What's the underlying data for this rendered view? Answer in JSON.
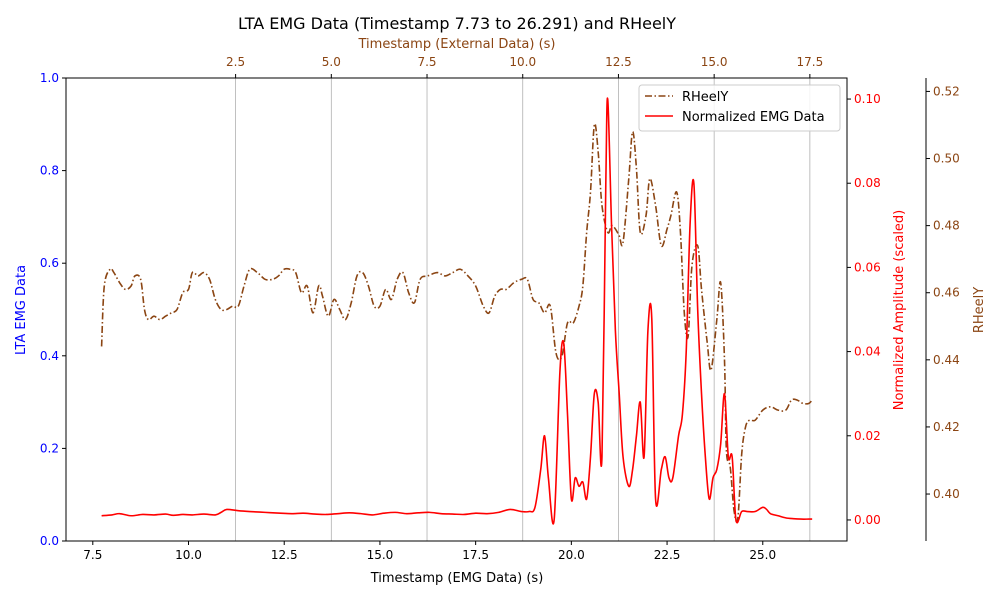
{
  "chart_data": {
    "type": "line",
    "title": "LTA EMG Data (Timestamp 7.73 to 26.291) and RHeelY",
    "x_bottom": {
      "label": "Timestamp (EMG Data) (s)",
      "range": [
        6.8,
        27.2
      ],
      "ticks": [
        7.5,
        10.0,
        12.5,
        15.0,
        17.5,
        20.0,
        22.5,
        25.0
      ],
      "tick_labels": [
        "7.5",
        "10.0",
        "12.5",
        "15.0",
        "17.5",
        "20.0",
        "22.5",
        "25.0"
      ]
    },
    "x_top": {
      "label": "Timestamp (External Data) (s)",
      "range": [
        -1.93,
        18.47
      ],
      "ticks": [
        2.5,
        5.0,
        7.5,
        10.0,
        12.5,
        15.0,
        17.5
      ],
      "tick_labels": [
        "2.5",
        "5.0",
        "7.5",
        "10.0",
        "12.5",
        "15.0",
        "17.5"
      ],
      "grid": true
    },
    "y_left": {
      "label": "LTA EMG Data",
      "range": [
        0,
        1
      ],
      "ticks": [
        0.0,
        0.2,
        0.4,
        0.6,
        0.8,
        1.0
      ],
      "tick_labels": [
        "0.0",
        "0.2",
        "0.4",
        "0.6",
        "0.8",
        "1.0"
      ],
      "color": "#0000ff"
    },
    "y_right1": {
      "label": "Normalized Amplitude (scaled)",
      "range": [
        -0.005,
        0.105
      ],
      "ticks": [
        0.0,
        0.02,
        0.04,
        0.06,
        0.08,
        0.1
      ],
      "tick_labels": [
        "0.00",
        "0.02",
        "0.04",
        "0.06",
        "0.08",
        "0.10"
      ],
      "color": "#ff0000"
    },
    "y_right2": {
      "label": "RHeelY",
      "range": [
        0.386,
        0.524
      ],
      "ticks": [
        0.4,
        0.42,
        0.44,
        0.46,
        0.48,
        0.5,
        0.52
      ],
      "tick_labels": [
        "0.40",
        "0.42",
        "0.44",
        "0.46",
        "0.48",
        "0.50",
        "0.52"
      ],
      "color": "#8b4513"
    },
    "legend": {
      "placement": "top-right",
      "entries": [
        "RHeelY",
        "Normalized EMG Data"
      ]
    },
    "series": [
      {
        "name": "RHeelY",
        "axis": "y_right2",
        "color": "#8b4513",
        "style": "dashdot",
        "x": [
          7.73,
          7.8,
          7.95,
          8.05,
          8.2,
          8.35,
          8.5,
          8.6,
          8.75,
          8.85,
          8.95,
          9.1,
          9.25,
          9.4,
          9.55,
          9.7,
          9.85,
          10.0,
          10.1,
          10.25,
          10.4,
          10.55,
          10.7,
          10.85,
          11.0,
          11.15,
          11.3,
          11.45,
          11.6,
          11.8,
          12.0,
          12.2,
          12.35,
          12.5,
          12.65,
          12.8,
          12.95,
          13.1,
          13.25,
          13.4,
          13.5,
          13.65,
          13.8,
          13.95,
          14.1,
          14.25,
          14.4,
          14.55,
          14.7,
          14.85,
          15.0,
          15.15,
          15.3,
          15.45,
          15.6,
          15.75,
          15.9,
          16.05,
          16.25,
          16.5,
          16.7,
          16.9,
          17.1,
          17.3,
          17.5,
          17.7,
          17.85,
          18.0,
          18.15,
          18.3,
          18.5,
          18.7,
          18.85,
          19.0,
          19.15,
          19.3,
          19.45,
          19.6,
          19.75,
          19.9,
          20.05,
          20.2,
          20.3,
          20.4,
          20.5,
          20.6,
          20.7,
          20.8,
          20.95,
          21.05,
          21.15,
          21.25,
          21.35,
          21.5,
          21.6,
          21.7,
          21.8,
          21.95,
          22.05,
          22.2,
          22.35,
          22.5,
          22.6,
          22.75,
          22.85,
          22.95,
          23.05,
          23.15,
          23.3,
          23.4,
          23.55,
          23.65,
          23.8,
          23.9,
          24.0,
          24.05,
          24.15,
          24.25,
          24.35,
          24.45,
          24.55,
          24.65,
          24.8,
          25.0,
          25.2,
          25.4,
          25.6,
          25.75,
          25.9,
          26.05,
          26.2,
          26.29
        ],
        "y": [
          0.444,
          0.462,
          0.467,
          0.466,
          0.463,
          0.461,
          0.462,
          0.465,
          0.464,
          0.455,
          0.452,
          0.453,
          0.452,
          0.453,
          0.454,
          0.455,
          0.46,
          0.461,
          0.466,
          0.465,
          0.466,
          0.464,
          0.458,
          0.455,
          0.455,
          0.456,
          0.456,
          0.462,
          0.467,
          0.466,
          0.464,
          0.464,
          0.465,
          0.467,
          0.467,
          0.466,
          0.46,
          0.462,
          0.454,
          0.462,
          0.459,
          0.453,
          0.458,
          0.455,
          0.452,
          0.457,
          0.465,
          0.466,
          0.462,
          0.456,
          0.456,
          0.461,
          0.458,
          0.464,
          0.466,
          0.46,
          0.457,
          0.464,
          0.465,
          0.466,
          0.465,
          0.466,
          0.467,
          0.465,
          0.462,
          0.456,
          0.454,
          0.459,
          0.461,
          0.461,
          0.463,
          0.464,
          0.464,
          0.458,
          0.457,
          0.454,
          0.456,
          0.442,
          0.441,
          0.451,
          0.451,
          0.456,
          0.462,
          0.478,
          0.49,
          0.51,
          0.502,
          0.486,
          0.478,
          0.48,
          0.479,
          0.477,
          0.475,
          0.494,
          0.508,
          0.497,
          0.478,
          0.483,
          0.494,
          0.486,
          0.474,
          0.479,
          0.483,
          0.49,
          0.478,
          0.454,
          0.447,
          0.468,
          0.474,
          0.461,
          0.445,
          0.437,
          0.452,
          0.463,
          0.44,
          0.413,
          0.408,
          0.395,
          0.393,
          0.412,
          0.42,
          0.422,
          0.422,
          0.425,
          0.426,
          0.425,
          0.425,
          0.428,
          0.428,
          0.427,
          0.427,
          0.428
        ]
      },
      {
        "name": "Normalized EMG Data",
        "axis": "y_right1",
        "color": "#ff0000",
        "style": "solid",
        "x": [
          7.73,
          8.0,
          8.2,
          8.5,
          8.8,
          9.1,
          9.4,
          9.6,
          9.85,
          10.1,
          10.4,
          10.7,
          10.85,
          11.0,
          11.3,
          11.6,
          12.0,
          12.4,
          12.7,
          13.0,
          13.3,
          13.6,
          13.9,
          14.2,
          14.5,
          14.8,
          15.1,
          15.4,
          15.7,
          16.0,
          16.3,
          16.6,
          16.9,
          17.2,
          17.5,
          17.8,
          18.1,
          18.4,
          18.7,
          18.9,
          19.05,
          19.2,
          19.3,
          19.4,
          19.55,
          19.7,
          19.8,
          19.9,
          20.0,
          20.1,
          20.2,
          20.3,
          20.4,
          20.5,
          20.6,
          20.7,
          20.8,
          20.9,
          20.95,
          21.05,
          21.15,
          21.25,
          21.35,
          21.5,
          21.6,
          21.7,
          21.8,
          21.9,
          22.0,
          22.1,
          22.2,
          22.35,
          22.45,
          22.55,
          22.65,
          22.8,
          22.9,
          23.0,
          23.1,
          23.2,
          23.3,
          23.4,
          23.5,
          23.6,
          23.7,
          23.8,
          23.9,
          24.0,
          24.1,
          24.2,
          24.3,
          24.45,
          24.6,
          24.8,
          25.0,
          25.1,
          25.2,
          25.4,
          25.6,
          25.8,
          26.0,
          26.2,
          26.29
        ],
        "y": [
          0.001,
          0.0012,
          0.0015,
          0.001,
          0.0013,
          0.0012,
          0.0014,
          0.0011,
          0.0013,
          0.0012,
          0.0014,
          0.0012,
          0.0018,
          0.0025,
          0.0022,
          0.002,
          0.0018,
          0.0016,
          0.0015,
          0.0016,
          0.0014,
          0.0013,
          0.0015,
          0.0017,
          0.0015,
          0.0012,
          0.0016,
          0.0018,
          0.0015,
          0.0017,
          0.0018,
          0.0015,
          0.0014,
          0.0013,
          0.0016,
          0.0015,
          0.0018,
          0.0025,
          0.002,
          0.002,
          0.003,
          0.012,
          0.02,
          0.01,
          0.0,
          0.035,
          0.042,
          0.025,
          0.005,
          0.01,
          0.008,
          0.009,
          0.005,
          0.015,
          0.03,
          0.028,
          0.015,
          0.08,
          0.1,
          0.07,
          0.045,
          0.03,
          0.015,
          0.008,
          0.012,
          0.02,
          0.028,
          0.015,
          0.045,
          0.048,
          0.005,
          0.012,
          0.015,
          0.01,
          0.01,
          0.02,
          0.025,
          0.04,
          0.07,
          0.08,
          0.05,
          0.03,
          0.015,
          0.005,
          0.01,
          0.012,
          0.018,
          0.03,
          0.015,
          0.015,
          0.0,
          0.002,
          0.002,
          0.002,
          0.003,
          0.0025,
          0.0015,
          0.001,
          0.0005,
          0.0003,
          0.0002,
          0.0002,
          0.0002
        ]
      }
    ]
  }
}
